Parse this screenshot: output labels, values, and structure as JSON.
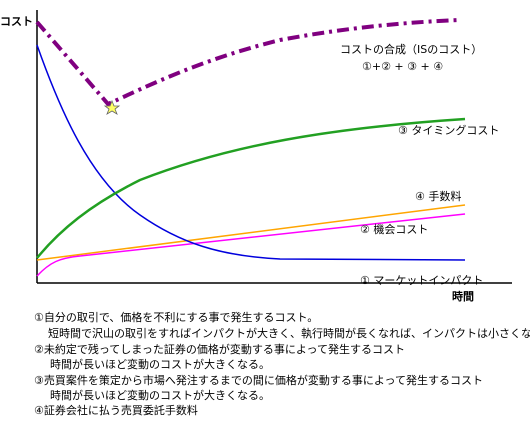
{
  "axes": {
    "y_label": "コスト",
    "x_label": "時間"
  },
  "labels": {
    "total": "コストの合成（ISのコスト）",
    "total_formula": "①+② + ③ + ④",
    "timing": "③ タイミングコスト",
    "fee": "④ 手数料",
    "opportunity": "② 機会コスト",
    "impact": "①  マーケットインパクト"
  },
  "notes": [
    "①自分の取引で、価格を不利にする事で発生するコスト。",
    "短時間で沢山の取引をすればインパクトが大きく、執行時間が長くなれば、インパクトは小さくなる。",
    "②未約定で残ってしまった証券の価格が変動する事によって発生するコスト",
    "時間が長いほど変動のコストが大きくなる。",
    "③売買案件を策定から市場へ発注するまでの間に価格が変動する事によって発生するコスト",
    "時間が長いほど変動のコストが大きくなる。",
    "④証券会社に払う売買委託手数料"
  ]
}
